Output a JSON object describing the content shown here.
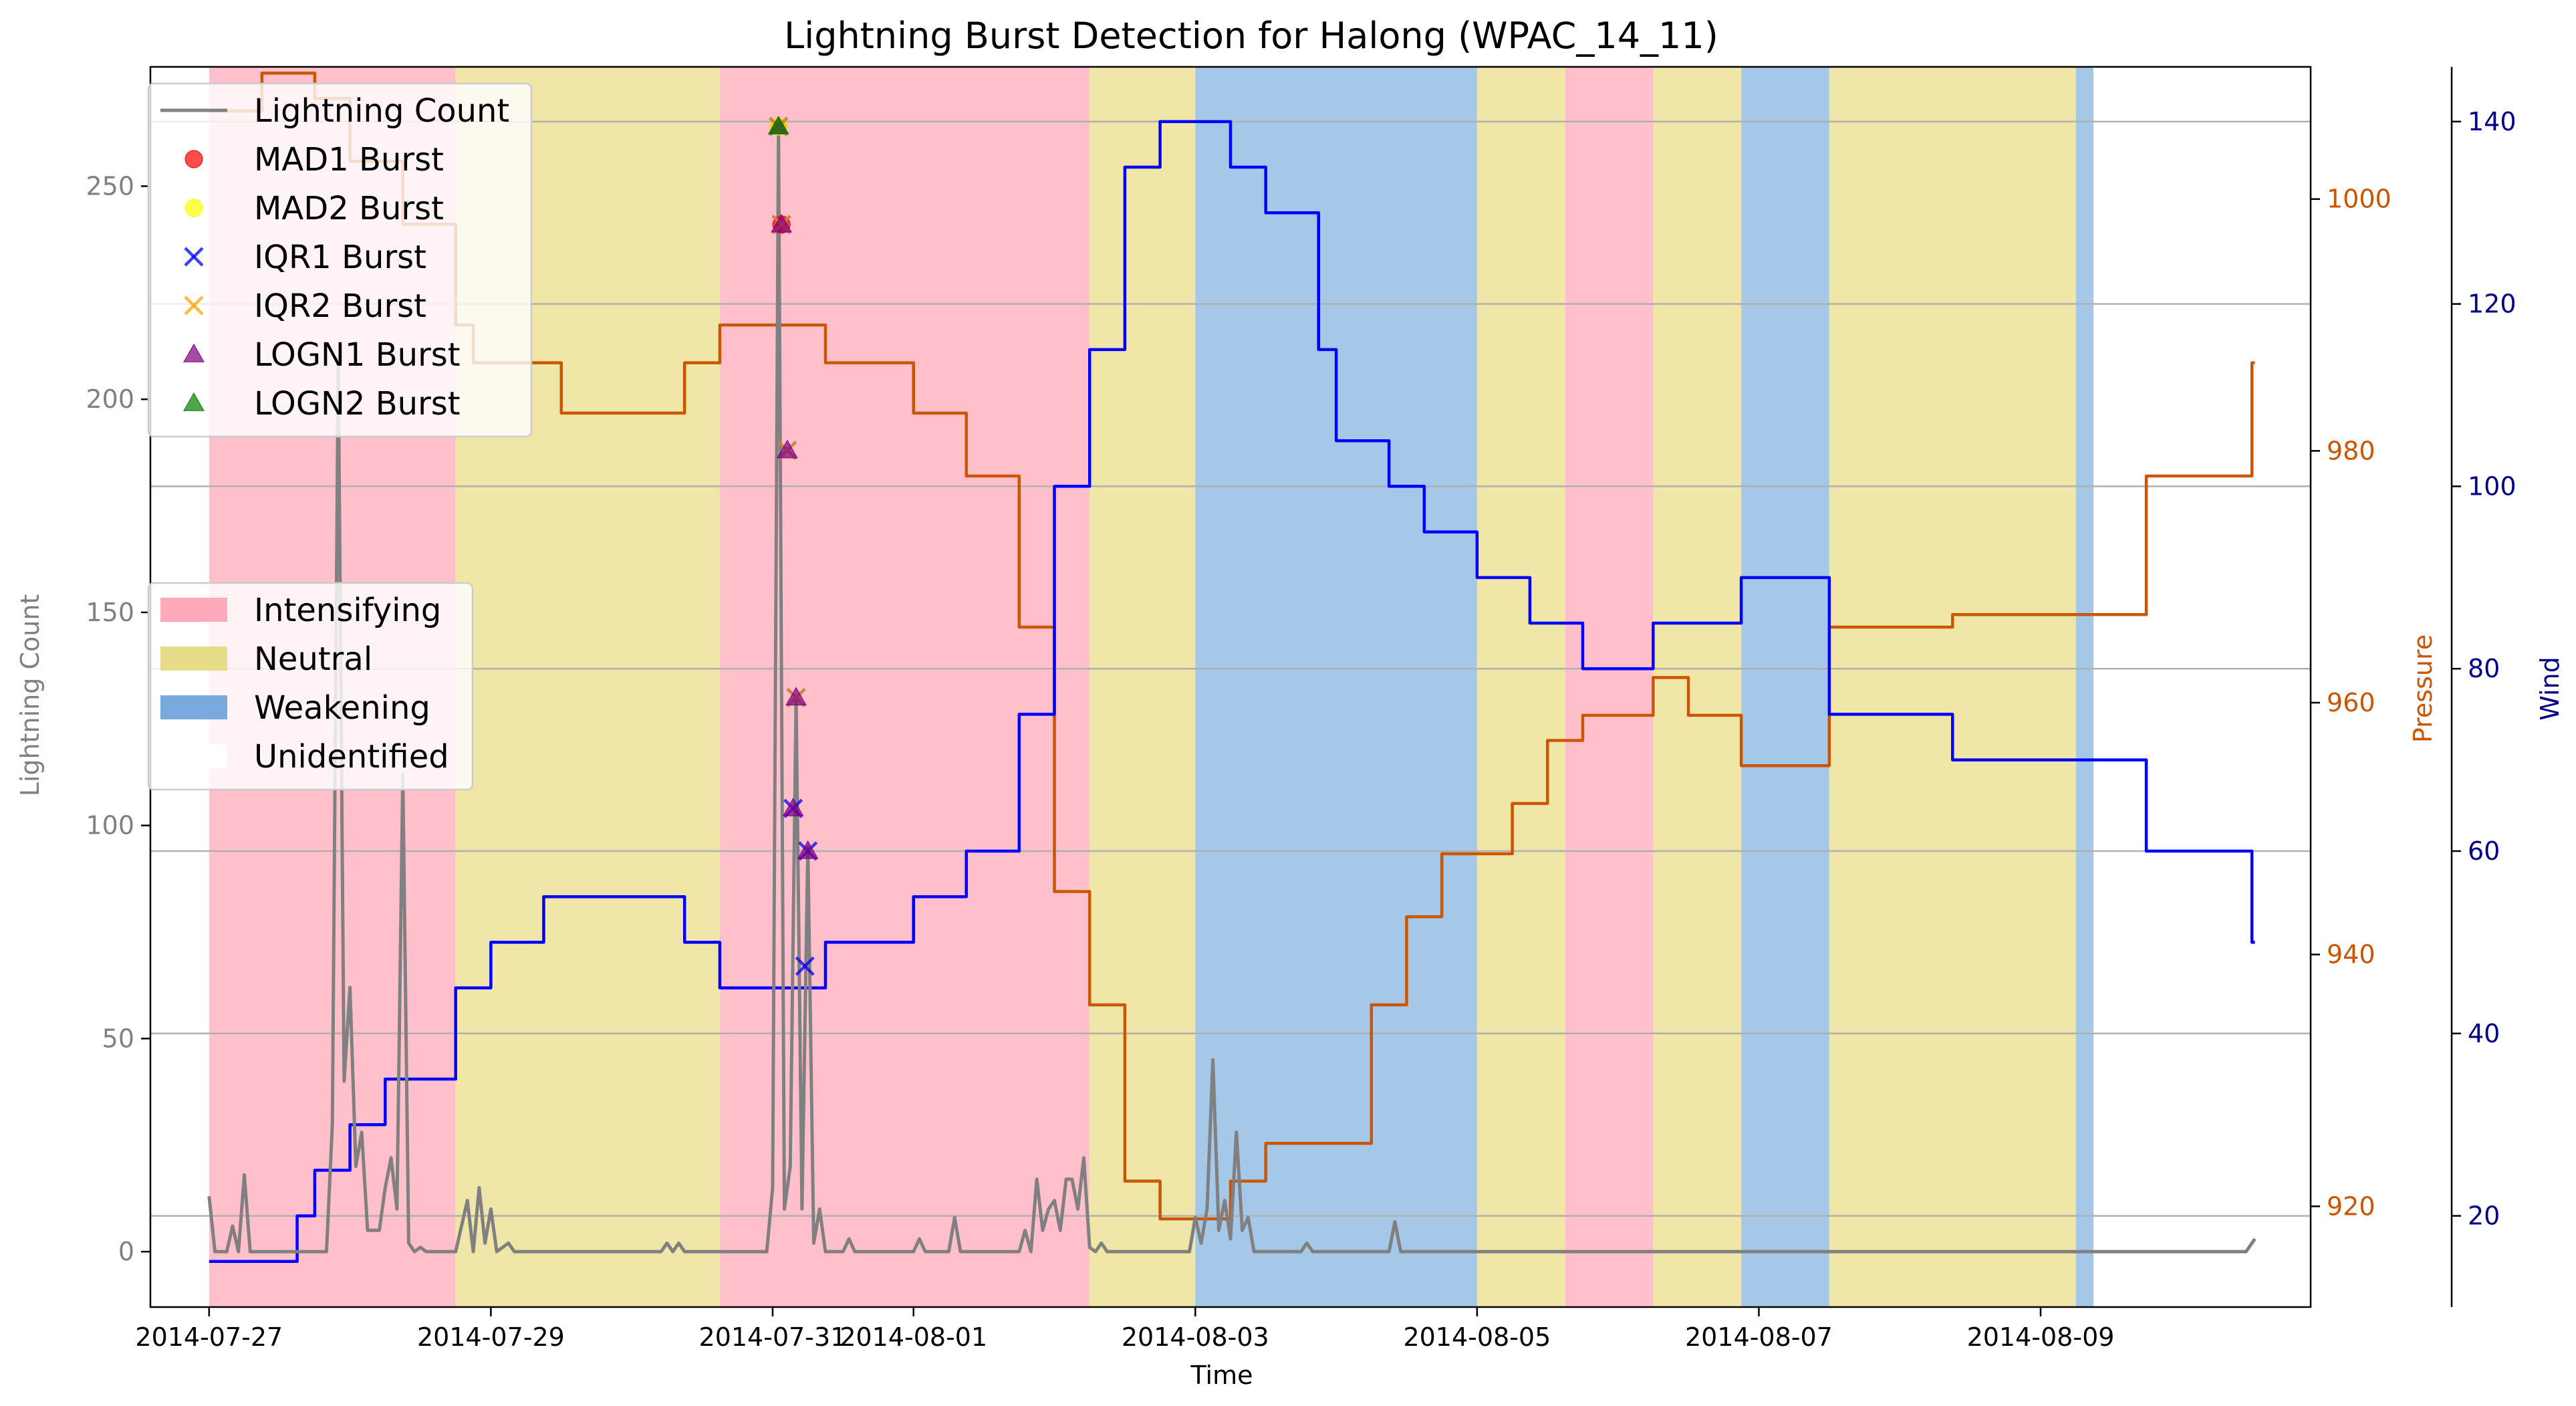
{
  "chart_data": {
    "type": "line",
    "title": "Lightning Burst Detection for Halong (WPAC_14_11)",
    "xlabel": "Time",
    "x_ticks": [
      "2014-07-27",
      "2014-07-29",
      "2014-07-31",
      "2014-08-01",
      "2014-08-03",
      "2014-08-05",
      "2014-08-07",
      "2014-08-09"
    ],
    "x_range": [
      "2014-07-26 14:00",
      "2014-08-10 22:00"
    ],
    "axes": {
      "left": {
        "label": "Lightning Count",
        "range": [
          -13,
          278
        ],
        "ticks": [
          0,
          50,
          100,
          150,
          200,
          250
        ],
        "color": "#808080"
      },
      "pressure": {
        "label": "Pressure",
        "range": [
          912,
          1010.5
        ],
        "ticks": [
          920,
          940,
          960,
          980,
          1000
        ],
        "color": "#cc5500"
      },
      "wind": {
        "label": "Wind",
        "range": [
          10,
          146
        ],
        "ticks": [
          20,
          40,
          60,
          80,
          100,
          120,
          140
        ],
        "color": "#00008b"
      }
    },
    "grid": "horizontal lines on wind axis",
    "colors": {
      "lightning": "#808080",
      "pressure": "#cc5500",
      "wind": "#0000ff",
      "intensifying": "#ffc0cb",
      "neutral": "#f0e6a8",
      "weakening": "#a6c8e8"
    },
    "phases": [
      {
        "start": "2014-07-27 00:00",
        "end": "2014-07-28 18:00",
        "phase": "Intensifying"
      },
      {
        "start": "2014-07-28 18:00",
        "end": "2014-07-30 15:00",
        "phase": "Neutral"
      },
      {
        "start": "2014-07-30 15:00",
        "end": "2014-08-02 06:00",
        "phase": "Intensifying"
      },
      {
        "start": "2014-08-02 06:00",
        "end": "2014-08-02 24:00",
        "phase": "Neutral"
      },
      {
        "start": "2014-08-02 24:00",
        "end": "2014-08-04 24:00",
        "phase": "Weakening"
      },
      {
        "start": "2014-08-04 24:00",
        "end": "2014-08-05 15:00",
        "phase": "Neutral"
      },
      {
        "start": "2014-08-05 15:00",
        "end": "2014-08-06 06:00",
        "phase": "Intensifying"
      },
      {
        "start": "2014-08-06 06:00",
        "end": "2014-08-06 21:00",
        "phase": "Neutral"
      },
      {
        "start": "2014-08-06 21:00",
        "end": "2014-08-07 12:00",
        "phase": "Weakening"
      },
      {
        "start": "2014-08-07 12:00",
        "end": "2014-08-09 06:00",
        "phase": "Neutral"
      },
      {
        "start": "2014-08-09 06:00",
        "end": "2014-08-09 09:00",
        "phase": "Weakening"
      }
    ],
    "series": [
      {
        "name": "Pressure",
        "axis": "pressure",
        "style": "step",
        "points": [
          [
            "2014-07-27 00:00",
            1007
          ],
          [
            "2014-07-27 09:00",
            1010
          ],
          [
            "2014-07-27 18:00",
            1008
          ],
          [
            "2014-07-28 00:00",
            1003
          ],
          [
            "2014-07-28 09:00",
            998
          ],
          [
            "2014-07-28 18:00",
            990
          ],
          [
            "2014-07-28 21:00",
            987
          ],
          [
            "2014-07-29 12:00",
            983
          ],
          [
            "2014-07-30 09:00",
            987
          ],
          [
            "2014-07-30 15:00",
            990
          ],
          [
            "2014-07-31 09:00",
            987
          ],
          [
            "2014-08-01 00:00",
            983
          ],
          [
            "2014-08-01 09:00",
            978
          ],
          [
            "2014-08-01 18:00",
            966
          ],
          [
            "2014-08-02 00:00",
            945
          ],
          [
            "2014-08-02 06:00",
            936
          ],
          [
            "2014-08-02 12:00",
            922
          ],
          [
            "2014-08-02 18:00",
            919
          ],
          [
            "2014-08-03 06:00",
            922
          ],
          [
            "2014-08-03 12:00",
            925
          ],
          [
            "2014-08-04 06:00",
            936
          ],
          [
            "2014-08-04 12:00",
            943
          ],
          [
            "2014-08-04 18:00",
            948
          ],
          [
            "2014-08-05 06:00",
            952
          ],
          [
            "2014-08-05 12:00",
            957
          ],
          [
            "2014-08-05 18:00",
            959
          ],
          [
            "2014-08-06 06:00",
            962
          ],
          [
            "2014-08-06 12:00",
            959
          ],
          [
            "2014-08-06 21:00",
            955
          ],
          [
            "2014-08-07 12:00",
            966
          ],
          [
            "2014-08-08 09:00",
            967
          ],
          [
            "2014-08-09 00:00",
            967
          ],
          [
            "2014-08-09 09:00",
            967
          ],
          [
            "2014-08-09 18:00",
            978
          ],
          [
            "2014-08-10 12:00",
            987
          ],
          [
            "2014-08-10 12:30",
            987
          ]
        ]
      },
      {
        "name": "Wind",
        "axis": "wind",
        "style": "step",
        "points": [
          [
            "2014-07-27 00:00",
            15
          ],
          [
            "2014-07-27 15:00",
            20
          ],
          [
            "2014-07-27 18:00",
            25
          ],
          [
            "2014-07-28 00:00",
            30
          ],
          [
            "2014-07-28 06:00",
            35
          ],
          [
            "2014-07-28 18:00",
            45
          ],
          [
            "2014-07-29 00:00",
            50
          ],
          [
            "2014-07-29 09:00",
            55
          ],
          [
            "2014-07-30 09:00",
            50
          ],
          [
            "2014-07-30 15:00",
            45
          ],
          [
            "2014-07-31 09:00",
            50
          ],
          [
            "2014-08-01 00:00",
            55
          ],
          [
            "2014-08-01 09:00",
            60
          ],
          [
            "2014-08-01 18:00",
            75
          ],
          [
            "2014-08-02 00:00",
            100
          ],
          [
            "2014-08-02 06:00",
            115
          ],
          [
            "2014-08-02 12:00",
            135
          ],
          [
            "2014-08-02 18:00",
            140
          ],
          [
            "2014-08-03 06:00",
            135
          ],
          [
            "2014-08-03 12:00",
            130
          ],
          [
            "2014-08-03 21:00",
            115
          ],
          [
            "2014-08-04 00:00",
            105
          ],
          [
            "2014-08-04 09:00",
            100
          ],
          [
            "2014-08-04 15:00",
            95
          ],
          [
            "2014-08-04 24:00",
            90
          ],
          [
            "2014-08-05 09:00",
            85
          ],
          [
            "2014-08-05 18:00",
            80
          ],
          [
            "2014-08-06 06:00",
            85
          ],
          [
            "2014-08-06 21:00",
            90
          ],
          [
            "2014-08-07 12:00",
            75
          ],
          [
            "2014-08-08 09:00",
            70
          ],
          [
            "2014-08-09 18:00",
            60
          ],
          [
            "2014-08-10 12:00",
            50
          ],
          [
            "2014-08-10 12:30",
            50
          ]
        ]
      },
      {
        "name": "Lightning Count",
        "axis": "left",
        "style": "line",
        "points": [
          [
            "2014-07-27 00:00",
            13
          ],
          [
            "2014-07-27 01:00",
            0
          ],
          [
            "2014-07-27 03:00",
            0
          ],
          [
            "2014-07-27 04:00",
            6
          ],
          [
            "2014-07-27 05:00",
            0
          ],
          [
            "2014-07-27 06:00",
            18
          ],
          [
            "2014-07-27 07:00",
            0
          ],
          [
            "2014-07-27 20:00",
            0
          ],
          [
            "2014-07-27 21:00",
            30
          ],
          [
            "2014-07-27 22:00",
            210
          ],
          [
            "2014-07-27 23:00",
            40
          ],
          [
            "2014-07-28 00:00",
            62
          ],
          [
            "2014-07-28 01:00",
            20
          ],
          [
            "2014-07-28 02:00",
            28
          ],
          [
            "2014-07-28 03:00",
            5
          ],
          [
            "2014-07-28 05:00",
            5
          ],
          [
            "2014-07-28 06:00",
            15
          ],
          [
            "2014-07-28 07:00",
            22
          ],
          [
            "2014-07-28 08:00",
            10
          ],
          [
            "2014-07-28 09:00",
            112
          ],
          [
            "2014-07-28 10:00",
            2
          ],
          [
            "2014-07-28 11:00",
            0
          ],
          [
            "2014-07-28 12:00",
            1
          ],
          [
            "2014-07-28 13:00",
            0
          ],
          [
            "2014-07-28 18:00",
            0
          ],
          [
            "2014-07-28 20:00",
            12
          ],
          [
            "2014-07-28 21:00",
            0
          ],
          [
            "2014-07-28 22:00",
            15
          ],
          [
            "2014-07-28 23:00",
            2
          ],
          [
            "2014-07-29 00:00",
            10
          ],
          [
            "2014-07-29 01:00",
            0
          ],
          [
            "2014-07-29 03:00",
            2
          ],
          [
            "2014-07-29 04:00",
            0
          ],
          [
            "2014-07-30 05:00",
            0
          ],
          [
            "2014-07-30 06:00",
            2
          ],
          [
            "2014-07-30 07:00",
            0
          ],
          [
            "2014-07-30 08:00",
            2
          ],
          [
            "2014-07-30 09:00",
            0
          ],
          [
            "2014-07-30 23:00",
            0
          ],
          [
            "2014-07-31 00:00",
            15
          ],
          [
            "2014-07-31 01:00",
            264
          ],
          [
            "2014-07-31 02:00",
            10
          ],
          [
            "2014-07-31 03:00",
            20
          ],
          [
            "2014-07-31 04:00",
            130
          ],
          [
            "2014-07-31 05:00",
            10
          ],
          [
            "2014-07-31 06:00",
            95
          ],
          [
            "2014-07-31 07:00",
            2
          ],
          [
            "2014-07-31 08:00",
            10
          ],
          [
            "2014-07-31 09:00",
            0
          ],
          [
            "2014-07-31 12:00",
            0
          ],
          [
            "2014-07-31 13:00",
            3
          ],
          [
            "2014-07-31 14:00",
            0
          ],
          [
            "2014-08-01 00:00",
            0
          ],
          [
            "2014-08-01 01:00",
            3
          ],
          [
            "2014-08-01 02:00",
            0
          ],
          [
            "2014-08-01 06:00",
            0
          ],
          [
            "2014-08-01 07:00",
            8
          ],
          [
            "2014-08-01 08:00",
            0
          ],
          [
            "2014-08-01 18:00",
            0
          ],
          [
            "2014-08-01 19:00",
            5
          ],
          [
            "2014-08-01 20:00",
            0
          ],
          [
            "2014-08-01 21:00",
            17
          ],
          [
            "2014-08-01 22:00",
            5
          ],
          [
            "2014-08-01 23:00",
            10
          ],
          [
            "2014-08-02 00:00",
            12
          ],
          [
            "2014-08-02 01:00",
            5
          ],
          [
            "2014-08-02 02:00",
            17
          ],
          [
            "2014-08-02 03:00",
            17
          ],
          [
            "2014-08-02 04:00",
            10
          ],
          [
            "2014-08-02 05:00",
            22
          ],
          [
            "2014-08-02 06:00",
            1
          ],
          [
            "2014-08-02 07:00",
            0
          ],
          [
            "2014-08-02 08:00",
            2
          ],
          [
            "2014-08-02 09:00",
            0
          ],
          [
            "2014-08-02 23:00",
            0
          ],
          [
            "2014-08-03 00:00",
            8
          ],
          [
            "2014-08-03 01:00",
            2
          ],
          [
            "2014-08-03 02:00",
            10
          ],
          [
            "2014-08-03 03:00",
            45
          ],
          [
            "2014-08-03 04:00",
            5
          ],
          [
            "2014-08-03 05:00",
            12
          ],
          [
            "2014-08-03 06:00",
            3
          ],
          [
            "2014-08-03 07:00",
            28
          ],
          [
            "2014-08-03 08:00",
            5
          ],
          [
            "2014-08-03 09:00",
            8
          ],
          [
            "2014-08-03 10:00",
            0
          ],
          [
            "2014-08-03 18:00",
            0
          ],
          [
            "2014-08-03 19:00",
            2
          ],
          [
            "2014-08-03 20:00",
            0
          ],
          [
            "2014-08-04 09:00",
            0
          ],
          [
            "2014-08-04 10:00",
            7
          ],
          [
            "2014-08-04 11:00",
            0
          ],
          [
            "2014-08-07 00:00",
            0
          ],
          [
            "2014-08-10 11:00",
            0
          ],
          [
            "2014-08-10 12:30",
            3
          ]
        ]
      }
    ],
    "bursts": [
      {
        "name": "MAD1 Burst",
        "marker": "circle",
        "color": "#ff0000",
        "points": [
          [
            "2014-07-31 01:00",
            264
          ],
          [
            "2014-07-31 01:30",
            241
          ]
        ]
      },
      {
        "name": "MAD2 Burst",
        "marker": "circle",
        "color": "#ffff00",
        "points": [
          [
            "2014-07-31 01:00",
            264
          ]
        ]
      },
      {
        "name": "IQR1 Burst",
        "marker": "x",
        "color": "#0000ff",
        "points": [
          [
            "2014-07-31 01:00",
            264
          ],
          [
            "2014-07-31 01:30",
            241
          ],
          [
            "2014-07-31 02:30",
            188
          ],
          [
            "2014-07-31 04:00",
            130
          ],
          [
            "2014-07-31 03:30",
            104
          ],
          [
            "2014-07-31 06:00",
            94
          ],
          [
            "2014-07-31 05:30",
            67
          ]
        ]
      },
      {
        "name": "IQR2 Burst",
        "marker": "x",
        "color": "#ffa500",
        "points": [
          [
            "2014-07-31 01:00",
            264
          ],
          [
            "2014-07-31 01:30",
            241
          ],
          [
            "2014-07-31 02:30",
            188
          ],
          [
            "2014-07-31 04:00",
            130
          ]
        ]
      },
      {
        "name": "LOGN1 Burst",
        "marker": "triangle",
        "color": "#800080",
        "points": [
          [
            "2014-07-31 01:00",
            264
          ],
          [
            "2014-07-31 01:30",
            241
          ],
          [
            "2014-07-31 02:30",
            188
          ],
          [
            "2014-07-31 04:00",
            130
          ],
          [
            "2014-07-31 03:30",
            104
          ],
          [
            "2014-07-31 06:00",
            94
          ]
        ]
      },
      {
        "name": "LOGN2 Burst",
        "marker": "triangle",
        "color": "#008000",
        "points": [
          [
            "2014-07-31 01:00",
            264
          ]
        ]
      }
    ],
    "legend_top": {
      "placement": "top-left",
      "items": [
        {
          "label": "Lightning Count",
          "symbol": "line",
          "color": "#808080"
        },
        {
          "label": "MAD1 Burst",
          "symbol": "circle",
          "color": "#ff0000"
        },
        {
          "label": "MAD2 Burst",
          "symbol": "circle",
          "color": "#ffff00"
        },
        {
          "label": "IQR1 Burst",
          "symbol": "x",
          "color": "#0000ff"
        },
        {
          "label": "IQR2 Burst",
          "symbol": "x",
          "color": "#ffa500"
        },
        {
          "label": "LOGN1 Burst",
          "symbol": "triangle",
          "color": "#800080"
        },
        {
          "label": "LOGN2 Burst",
          "symbol": "triangle",
          "color": "#008000"
        }
      ]
    },
    "legend_phase": {
      "placement": "center-left",
      "items": [
        {
          "label": "Intensifying",
          "color": "#ffaabb"
        },
        {
          "label": "Neutral",
          "color": "#e8dc8a"
        },
        {
          "label": "Weakening",
          "color": "#7aa9dd"
        },
        {
          "label": "Unidentified",
          "color": "#ffffff"
        }
      ]
    }
  }
}
